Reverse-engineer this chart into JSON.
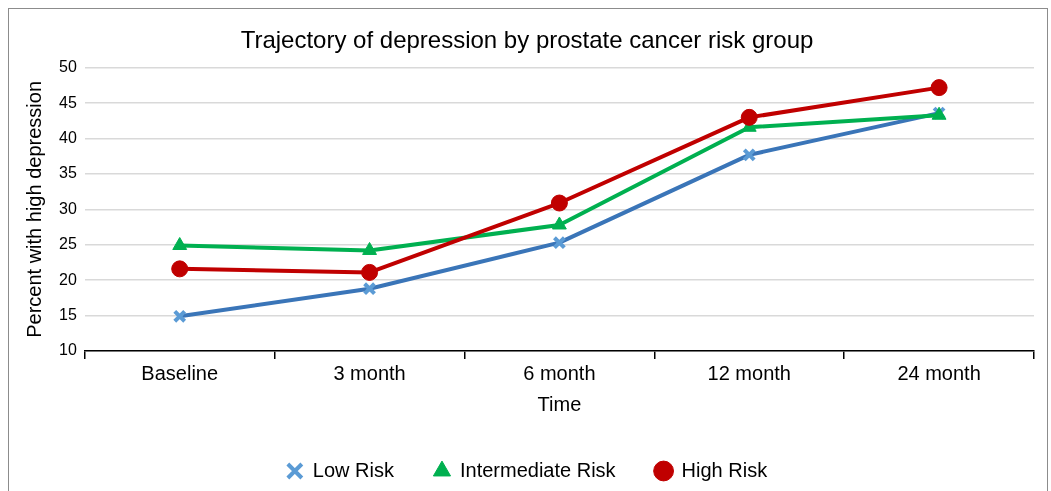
{
  "chart_data": {
    "type": "line",
    "title": "Trajectory of depression by prostate cancer risk group",
    "xlabel": "Time",
    "ylabel": "Percent with high depression",
    "categories": [
      "Baseline",
      "3 month",
      "6 month",
      "12 month",
      "24 month"
    ],
    "series": [
      {
        "name": "Low Risk",
        "color": "#3a75b8",
        "marker": "cross",
        "values": [
          14.9,
          18.8,
          25.3,
          37.7,
          43.6
        ]
      },
      {
        "name": "Intermediate Risk",
        "color": "#00b050",
        "marker": "triangle",
        "values": [
          24.9,
          24.2,
          27.8,
          41.6,
          43.3
        ]
      },
      {
        "name": "High Risk",
        "color": "#c00000",
        "marker": "circle",
        "values": [
          21.6,
          21.1,
          30.9,
          43.0,
          47.2
        ]
      }
    ],
    "ylim": [
      10,
      50
    ],
    "yticks": [
      10,
      15,
      20,
      25,
      30,
      35,
      40,
      45,
      50
    ],
    "grid": "y",
    "legend": "bottom",
    "line_style": "solid"
  }
}
